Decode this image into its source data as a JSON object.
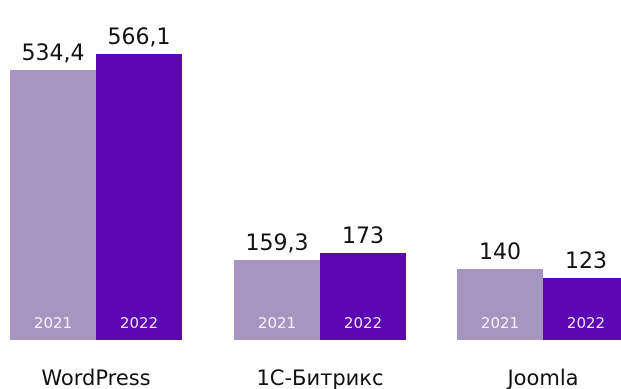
{
  "chart_data": {
    "type": "bar",
    "categories": [
      "WordPress",
      "1С-Битрикс",
      "Joomla"
    ],
    "series": [
      {
        "year": "2021",
        "values": [
          534.4,
          159.3,
          140
        ],
        "value_labels": [
          "534,4",
          "159,3",
          "140"
        ],
        "color": "#a595c0"
      },
      {
        "year": "2022",
        "values": [
          566.1,
          173,
          123
        ],
        "value_labels": [
          "566,1",
          "173",
          "123"
        ],
        "color": "#5c06b4"
      }
    ],
    "ylim": [
      0,
      566.1
    ],
    "grid": false,
    "legend": "none"
  }
}
